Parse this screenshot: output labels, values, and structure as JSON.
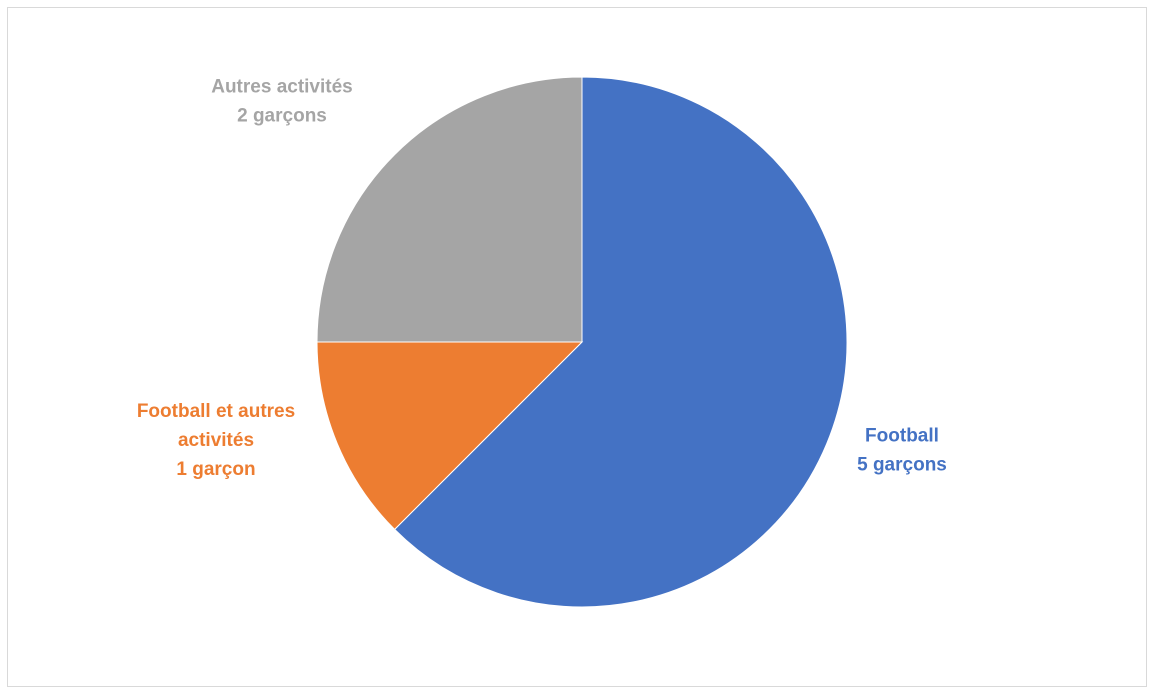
{
  "chart_data": {
    "type": "pie",
    "slices": [
      {
        "label_lines": [
          "Football",
          "5 garçons"
        ],
        "category": "Football",
        "value": 5,
        "color": "#4472C4"
      },
      {
        "label_lines": [
          "Football et autres",
          "activités",
          "1 garçon"
        ],
        "category": "Football et autres activités",
        "value": 1,
        "color": "#ED7D31"
      },
      {
        "label_lines": [
          "Autres activités",
          "2 garçons"
        ],
        "category": "Autres activités",
        "value": 2,
        "color": "#A5A5A5"
      }
    ],
    "start_angle_deg": 0,
    "direction": "clockwise",
    "legend": "none"
  }
}
